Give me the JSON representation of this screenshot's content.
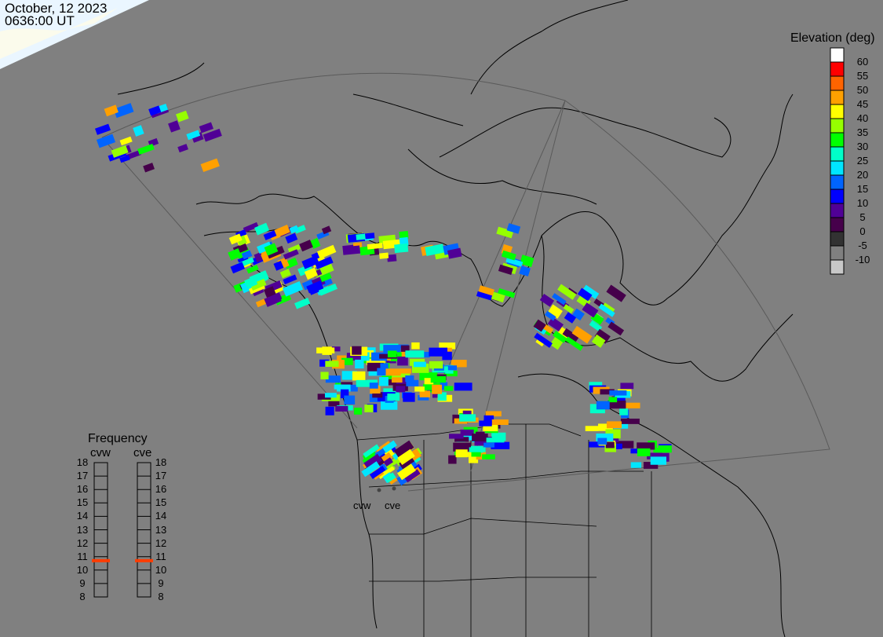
{
  "header": {
    "date": "October, 12 2023",
    "time": "0636:00 UT"
  },
  "elevation_legend": {
    "title": "Elevation (deg)",
    "labels": [
      "60",
      "55",
      "50",
      "45",
      "40",
      "35",
      "30",
      "25",
      "20",
      "15",
      "10",
      "5",
      "0",
      "-5",
      "-10"
    ],
    "colors": [
      "#ffffff",
      "#ff0000",
      "#ff6400",
      "#ffa000",
      "#ffff00",
      "#96ff00",
      "#00ff00",
      "#00ffc8",
      "#00e6ff",
      "#0064ff",
      "#0000ff",
      "#500096",
      "#46004b",
      "#323232",
      "#808080",
      "#c8c8c8"
    ]
  },
  "frequency_panel": {
    "title": "Frequency",
    "unit_range": [
      8,
      18
    ],
    "ticks": [
      "18",
      "17",
      "16",
      "15",
      "14",
      "13",
      "12",
      "11",
      "10",
      "9",
      "8"
    ],
    "radars": [
      {
        "name": "cvw",
        "frequency_mhz": 10.7
      },
      {
        "name": "cve",
        "frequency_mhz": 10.7
      }
    ],
    "marker_color": "#ff3c00"
  },
  "map": {
    "radar_labels": [
      "cvw",
      "cve"
    ],
    "background_color": "#808080",
    "daylight_color": "#eaf6ff"
  }
}
